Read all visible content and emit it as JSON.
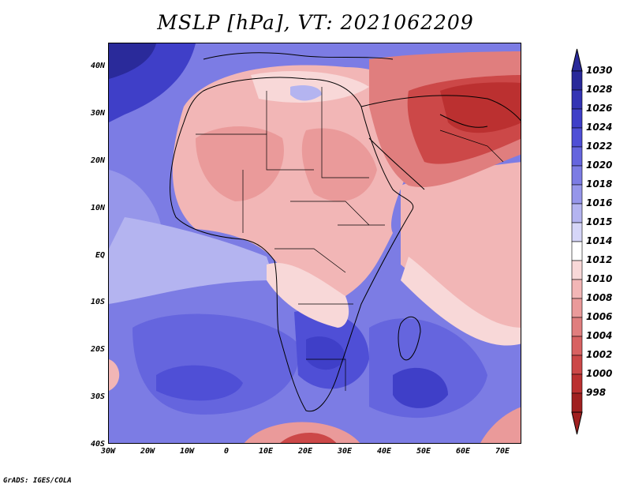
{
  "title": "MSLP [hPa], VT: 2021062209",
  "credit": "GrADS: IGES/COLA",
  "lat_labels": [
    "40N",
    "30N",
    "20N",
    "10N",
    "EQ",
    "10S",
    "20S",
    "30S",
    "40S"
  ],
  "lon_labels": [
    "30W",
    "20W",
    "10W",
    "0",
    "10E",
    "20E",
    "30E",
    "40E",
    "50E",
    "60E",
    "70E"
  ],
  "colorbar": {
    "levels": [
      "1030",
      "1028",
      "1026",
      "1024",
      "1022",
      "1020",
      "1018",
      "1016",
      "1015",
      "1014",
      "1012",
      "1010",
      "1008",
      "1006",
      "1004",
      "1002",
      "1000",
      "998"
    ],
    "colors": [
      "#2a2a9a",
      "#3434b4",
      "#3f3fc8",
      "#4f4fd6",
      "#6565de",
      "#7c7ce4",
      "#9696ea",
      "#b4b4f0",
      "#d6d6f8",
      "#ffffff",
      "#f8d8d8",
      "#f2b6b6",
      "#ea9a9a",
      "#e07e7e",
      "#d86262",
      "#cc4848",
      "#bb3030",
      "#a02020"
    ]
  },
  "field_colors": {
    "ocean_high": "#2a2a9a",
    "ocean_mid": "#6565de",
    "ocean_low": "#9696ea",
    "neutral": "#ffffff",
    "land_warm": "#f2b6b6",
    "land_mid": "#e07e7e",
    "land_deep": "#bb3030"
  }
}
